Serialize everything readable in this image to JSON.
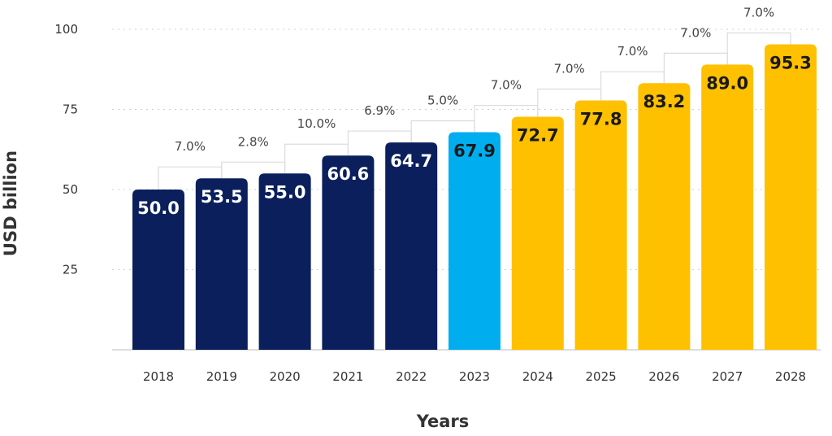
{
  "chart_data": {
    "type": "bar",
    "title": "",
    "xlabel": "Years",
    "ylabel": "USD billion",
    "ylim": [
      0,
      100
    ],
    "yticks": [
      25,
      50,
      75,
      100
    ],
    "grid": true,
    "categories": [
      "2018",
      "2019",
      "2020",
      "2021",
      "2022",
      "2023",
      "2024",
      "2025",
      "2026",
      "2027",
      "2028"
    ],
    "values": [
      50.0,
      53.5,
      55.0,
      60.6,
      64.7,
      67.9,
      72.7,
      77.8,
      83.2,
      89.0,
      95.3
    ],
    "value_labels": [
      "50.0",
      "53.5",
      "55.0",
      "60.6",
      "64.7",
      "67.9",
      "72.7",
      "77.8",
      "83.2",
      "89.0",
      "95.3"
    ],
    "growth_labels": [
      "7.0%",
      "2.8%",
      "10.0%",
      "6.9%",
      "5.0%",
      "7.0%",
      "7.0%",
      "7.0%",
      "7.0%",
      "7.0%"
    ],
    "bar_colors": [
      "#0a1f5c",
      "#0a1f5c",
      "#0a1f5c",
      "#0a1f5c",
      "#0a1f5c",
      "#00aeef",
      "#ffc000",
      "#ffc000",
      "#ffc000",
      "#ffc000",
      "#ffc000"
    ],
    "value_label_colors": [
      "#ffffff",
      "#ffffff",
      "#ffffff",
      "#ffffff",
      "#ffffff",
      "#1a1a1a",
      "#1a1a1a",
      "#1a1a1a",
      "#1a1a1a",
      "#1a1a1a",
      "#1a1a1a"
    ]
  }
}
